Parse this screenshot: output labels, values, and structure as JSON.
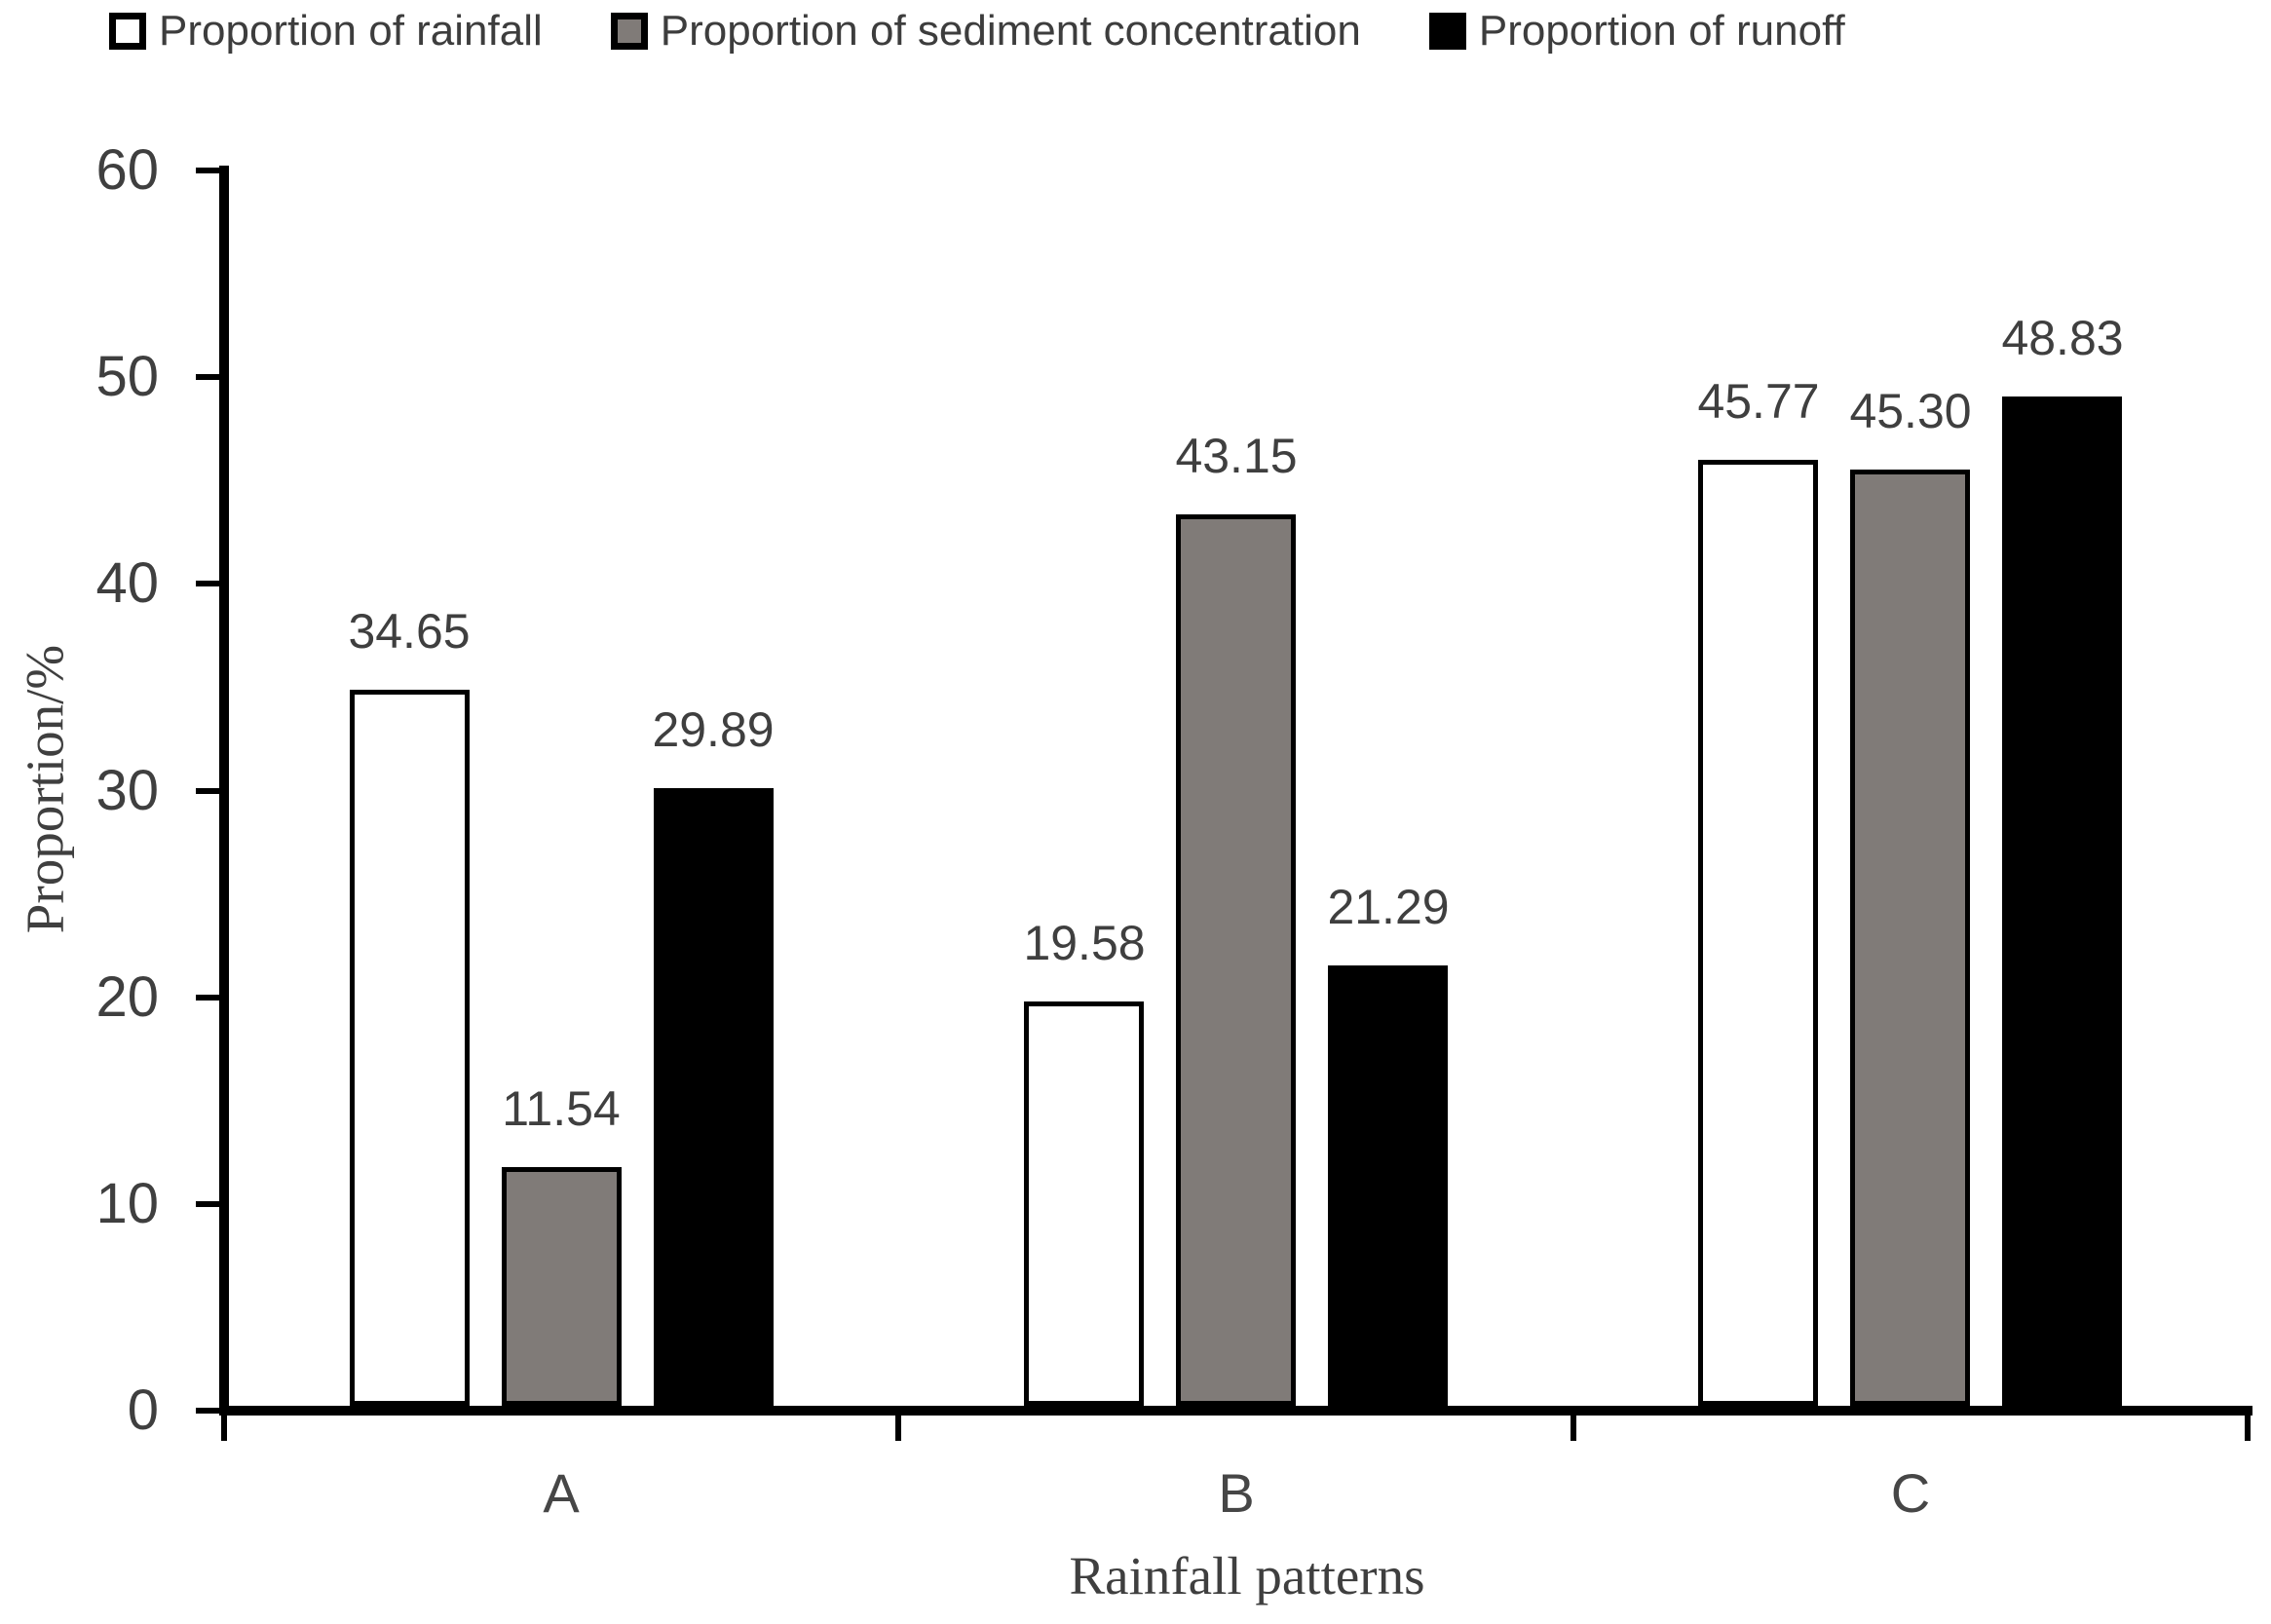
{
  "chart_data": {
    "type": "bar",
    "title": "",
    "categories": [
      "A",
      "B",
      "C"
    ],
    "series": [
      {
        "name": "Proportion of rainfall",
        "fill": "#ffffff",
        "values": [
          34.65,
          19.58,
          45.77
        ],
        "value_labels": [
          "34.65",
          "19.58",
          "45.77"
        ]
      },
      {
        "name": "Proportion of sediment concentration",
        "fill": "#807b78",
        "values": [
          11.54,
          43.15,
          45.3
        ],
        "value_labels": [
          "11.54",
          "43.15",
          "45.30"
        ]
      },
      {
        "name": "Proportion of runoff",
        "fill": "#000000",
        "values": [
          29.89,
          21.29,
          48.83
        ],
        "value_labels": [
          "29.89",
          "21.29",
          "48.83"
        ]
      }
    ],
    "xlabel": "Rainfall patterns",
    "ylabel": "Proportion/%",
    "ylim": [
      0,
      60
    ],
    "yticks": [
      "0",
      "10",
      "20",
      "30",
      "40",
      "50",
      "60"
    ],
    "grid": false,
    "legend_position": "top",
    "data_labels": true,
    "bar_border_color": "#000000",
    "axis_color": "#000000",
    "text_color": "#3f3f3f"
  }
}
